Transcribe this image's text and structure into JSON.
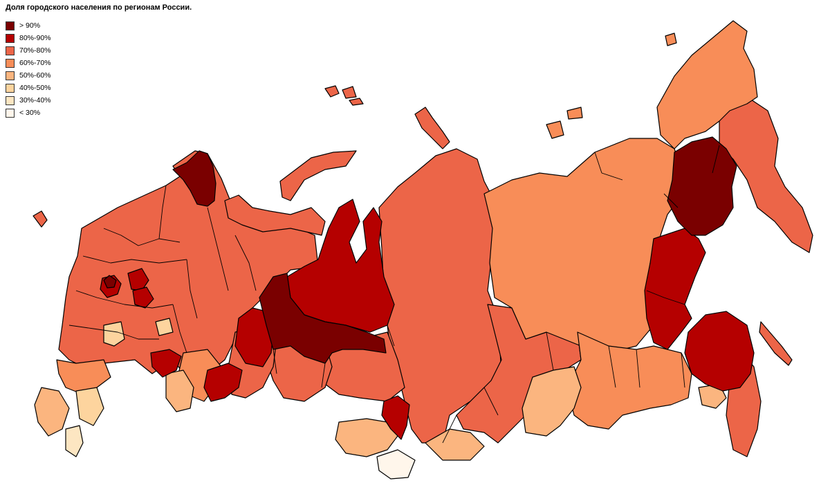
{
  "title": "Доля городского населения по регионам России.",
  "legend": [
    {
      "label": "> 90%",
      "color": "#7a0000"
    },
    {
      "label": "80%-90%",
      "color": "#b50000"
    },
    {
      "label": "70%-80%",
      "color": "#ec6548"
    },
    {
      "label": "60%-70%",
      "color": "#f88d58"
    },
    {
      "label": "50%-60%",
      "color": "#fbb57f"
    },
    {
      "label": "40%-50%",
      "color": "#fdd49e"
    },
    {
      "label": "30%-40%",
      "color": "#fde6c2"
    },
    {
      "label": "< 30%",
      "color": "#fff6eb"
    }
  ]
}
